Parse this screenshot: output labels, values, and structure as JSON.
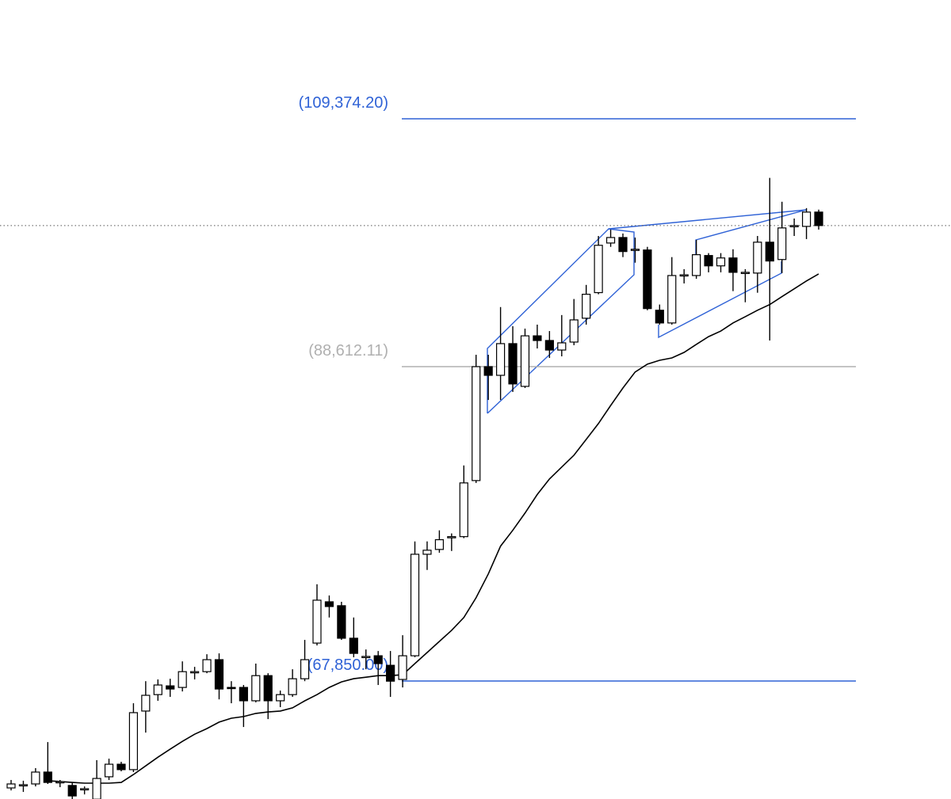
{
  "chart_data": {
    "type": "candlestick",
    "log_scale": true,
    "ylim": [
      61380,
      120980
    ],
    "categories": [
      null,
      null,
      null,
      null,
      null,
      null,
      null,
      null,
      null,
      null,
      null,
      null,
      null,
      null,
      null,
      null,
      null,
      null,
      null,
      null,
      null,
      null,
      null,
      null,
      null,
      null,
      null,
      null,
      null,
      null,
      null,
      null,
      null,
      null,
      null,
      null,
      null,
      null,
      null,
      null,
      null,
      null,
      null,
      null,
      null,
      null,
      null,
      null,
      null,
      null,
      null,
      null,
      null,
      null,
      null,
      null,
      null,
      null,
      null,
      null,
      null,
      null,
      null,
      null,
      null,
      null,
      null
    ],
    "open": [
      61960,
      62080,
      62170,
      62800,
      62250,
      62090,
      61880,
      61370,
      62550,
      63220,
      62930,
      66140,
      67070,
      67570,
      67480,
      68350,
      68390,
      69090,
      67480,
      67480,
      66720,
      68160,
      66720,
      67070,
      67980,
      70070,
      72570,
      72330,
      70360,
      69230,
      69320,
      68760,
      67940,
      69320,
      75560,
      75870,
      76650,
      76700,
      80440,
      88610,
      87960,
      90360,
      87140,
      90960,
      90600,
      89870,
      90480,
      92330,
      94360,
      98420,
      98880,
      97840,
      97840,
      92960,
      91960,
      95800,
      95740,
      97380,
      96530,
      97180,
      95940,
      95940,
      98490,
      97050,
      99820,
      99820,
      101040
    ],
    "high": [
      62380,
      62340,
      63010,
      64420,
      62380,
      62250,
      62040,
      63440,
      63520,
      63350,
      66580,
      67840,
      67940,
      67980,
      68990,
      68670,
      69410,
      69460,
      67840,
      67620,
      68860,
      68300,
      67300,
      68530,
      70260,
      73660,
      72960,
      72570,
      71610,
      69690,
      69600,
      69600,
      70540,
      76390,
      76390,
      77110,
      76910,
      81480,
      89510,
      89510,
      93210,
      91710,
      91520,
      91830,
      91330,
      92580,
      93850,
      94980,
      99010,
      99550,
      99220,
      98880,
      98100,
      93410,
      97250,
      96260,
      98680,
      97580,
      97580,
      97900,
      96260,
      99010,
      104020,
      101930,
      100490,
      101380,
      101250
    ],
    "low": [
      61830,
      61750,
      62040,
      62170,
      62000,
      61370,
      61620,
      61370,
      62380,
      62840,
      62800,
      64940,
      66720,
      66940,
      67250,
      67940,
      68300,
      66800,
      66580,
      65250,
      66630,
      65690,
      66360,
      66940,
      67840,
      69930,
      71610,
      70260,
      69230,
      68530,
      67620,
      66940,
      67480,
      69230,
      74560,
      75660,
      75770,
      76600,
      80280,
      86140,
      86140,
      86730,
      87020,
      89990,
      89270,
      89390,
      90240,
      91830,
      94230,
      98100,
      97250,
      96790,
      92960,
      91830,
      91830,
      95100,
      95480,
      96000,
      96000,
      94480,
      93590,
      94350,
      90600,
      95940,
      99010,
      98750,
      99550
    ],
    "close": [
      62170,
      62130,
      62800,
      62250,
      62290,
      61540,
      61920,
      62460,
      63220,
      62930,
      66050,
      67030,
      67620,
      67390,
      68390,
      68390,
      69090,
      67390,
      67440,
      66720,
      68160,
      66720,
      67070,
      67980,
      69090,
      72670,
      72280,
      70360,
      69460,
      69280,
      68860,
      67840,
      69320,
      75560,
      75820,
      76500,
      76700,
      80280,
      88610,
      87960,
      90360,
      87320,
      90960,
      90600,
      89870,
      90420,
      92200,
      94230,
      98230,
      98880,
      97710,
      97900,
      93090,
      91960,
      95740,
      95800,
      97450,
      96530,
      97180,
      96000,
      96000,
      98490,
      96930,
      99690,
      99890,
      101040,
      99890
    ],
    "up_color": "#ffffff",
    "down_color": "#000000",
    "moving_average": {
      "color": "#000000",
      "values": [
        null,
        null,
        null,
        62340,
        62300,
        62250,
        62210,
        62210,
        62210,
        62250,
        62670,
        63130,
        63600,
        64030,
        64460,
        64850,
        65160,
        65520,
        65740,
        65830,
        66010,
        66090,
        66140,
        66320,
        66720,
        67070,
        67480,
        67800,
        67980,
        68070,
        68160,
        68160,
        68210,
        68860,
        69510,
        70170,
        70830,
        71610,
        72820,
        74310,
        76080,
        77110,
        78250,
        79490,
        80550,
        81370,
        82190,
        83300,
        84430,
        85740,
        87020,
        88210,
        88800,
        89090,
        89270,
        89690,
        90300,
        90900,
        91330,
        91960,
        92450,
        92960,
        93410,
        94040,
        94670,
        95300,
        95870
      ]
    },
    "levels": [
      {
        "value": 109374.2,
        "label": "(109,374.20)",
        "color": "#2f62d6"
      },
      {
        "value": 88612.11,
        "label": "(88,612.11)",
        "color": "#b0b0b0"
      },
      {
        "value": 67850,
        "label": "(67,850.00)",
        "color": "#2f62d6"
      }
    ]
  }
}
